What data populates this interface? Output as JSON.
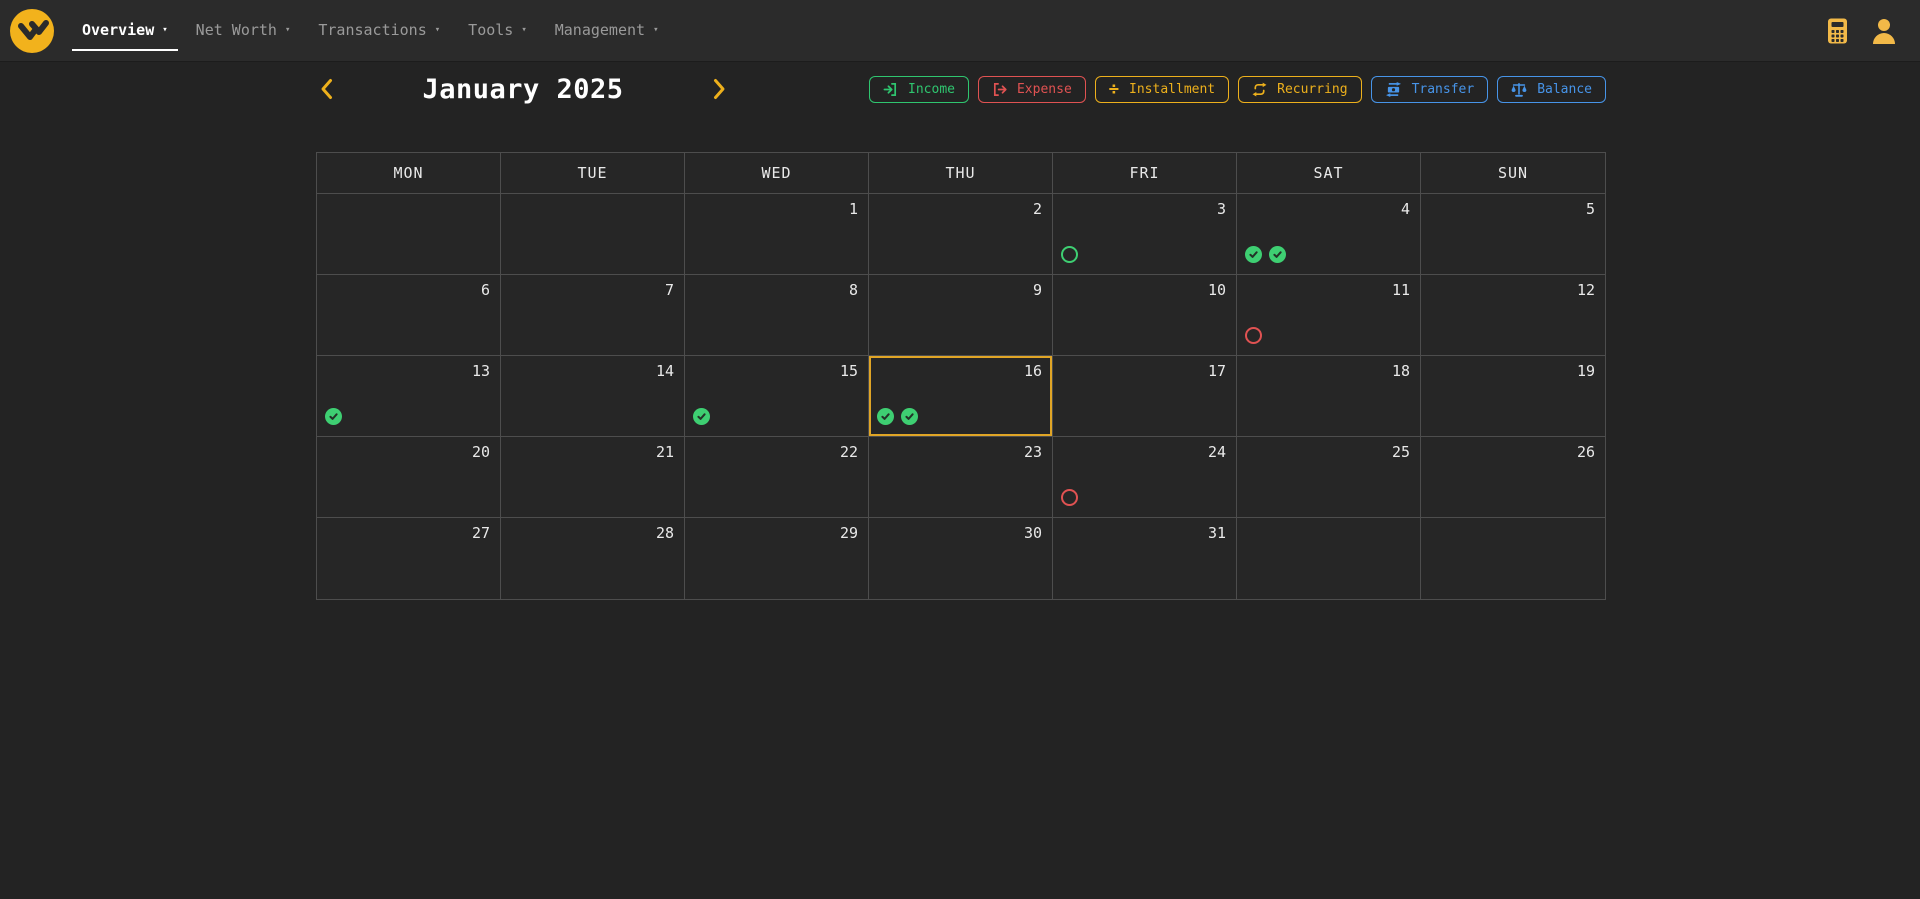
{
  "topbar": {
    "nav": [
      {
        "label": "Overview",
        "active": true
      },
      {
        "label": "Net Worth",
        "active": false
      },
      {
        "label": "Transactions",
        "active": false
      },
      {
        "label": "Tools",
        "active": false
      },
      {
        "label": "Management",
        "active": false
      }
    ],
    "right_icons": [
      {
        "name": "calculator-icon"
      },
      {
        "name": "user-icon"
      }
    ]
  },
  "calendar": {
    "title": "January 2025",
    "weekdays": [
      "MON",
      "TUE",
      "WED",
      "THU",
      "FRI",
      "SAT",
      "SUN"
    ],
    "legend": [
      {
        "label": "Income",
        "color": "green",
        "icon": "income-icon"
      },
      {
        "label": "Expense",
        "color": "red",
        "icon": "expense-icon"
      },
      {
        "label": "Installment",
        "color": "yellow",
        "icon": "installment-icon"
      },
      {
        "label": "Recurring",
        "color": "yellow",
        "icon": "recurring-icon"
      },
      {
        "label": "Transfer",
        "color": "blue",
        "icon": "transfer-icon"
      },
      {
        "label": "Balance",
        "color": "blue",
        "icon": "balance-icon"
      }
    ],
    "weeks": [
      [
        {
          "day": ""
        },
        {
          "day": ""
        },
        {
          "day": "1"
        },
        {
          "day": "2"
        },
        {
          "day": "3",
          "markers": [
            "ring-green"
          ]
        },
        {
          "day": "4",
          "markers": [
            "check-green",
            "check-green"
          ]
        },
        {
          "day": "5"
        }
      ],
      [
        {
          "day": "6"
        },
        {
          "day": "7"
        },
        {
          "day": "8"
        },
        {
          "day": "9"
        },
        {
          "day": "10"
        },
        {
          "day": "11",
          "markers": [
            "ring-red"
          ]
        },
        {
          "day": "12"
        }
      ],
      [
        {
          "day": "13",
          "markers": [
            "check-green"
          ]
        },
        {
          "day": "14"
        },
        {
          "day": "15",
          "markers": [
            "check-green"
          ]
        },
        {
          "day": "16",
          "markers": [
            "check-green",
            "check-green"
          ],
          "today": true
        },
        {
          "day": "17"
        },
        {
          "day": "18"
        },
        {
          "day": "19"
        }
      ],
      [
        {
          "day": "20"
        },
        {
          "day": "21"
        },
        {
          "day": "22"
        },
        {
          "day": "23"
        },
        {
          "day": "24",
          "markers": [
            "ring-red"
          ]
        },
        {
          "day": "25"
        },
        {
          "day": "26"
        }
      ],
      [
        {
          "day": "27"
        },
        {
          "day": "28"
        },
        {
          "day": "29"
        },
        {
          "day": "30"
        },
        {
          "day": "31"
        },
        {
          "day": ""
        },
        {
          "day": ""
        }
      ]
    ]
  },
  "colors": {
    "green": "#2fc56f",
    "green_fill": "#3ecf72",
    "red": "#e05252",
    "yellow": "#edb01c",
    "blue": "#4794e8",
    "topbar_bg": "#2b2b2b",
    "page_bg": "#232323",
    "cell_bg": "#262626",
    "border": "#4d4d4d",
    "text": "#e9e9e9",
    "muted": "#9a9a9a",
    "today_border": "#e0a526"
  }
}
